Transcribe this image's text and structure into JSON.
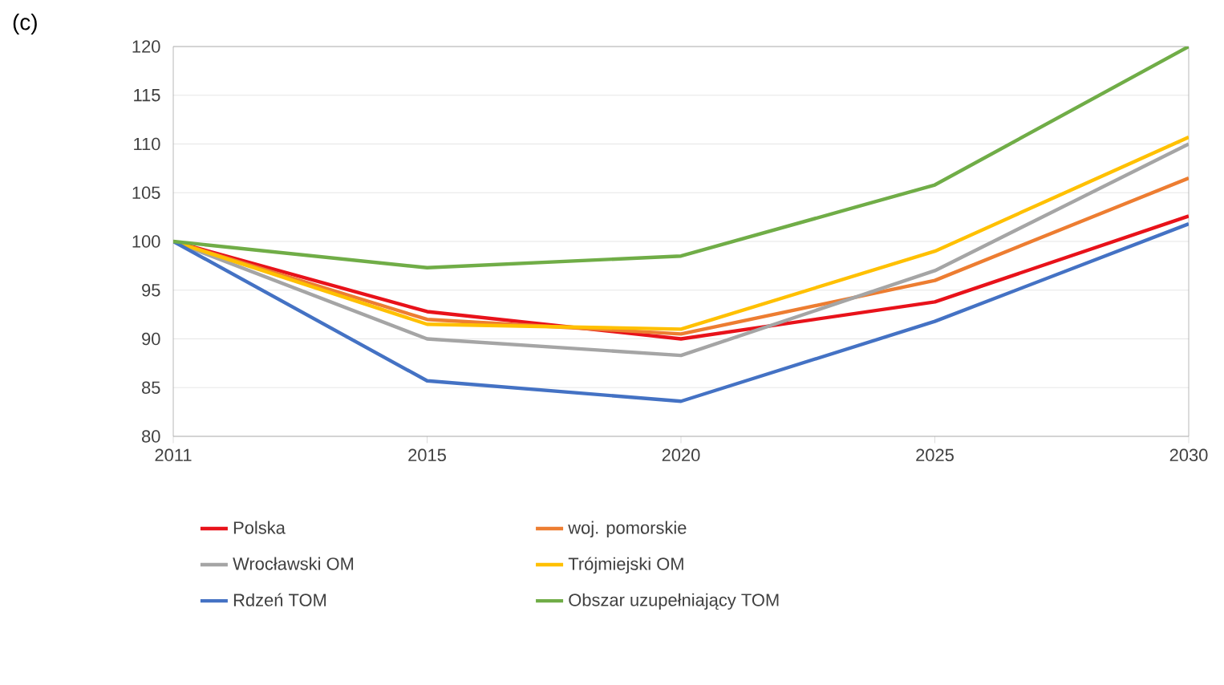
{
  "chart_data": {
    "type": "line",
    "annotations": [
      "(c)"
    ],
    "categories": [
      "2011",
      "2015",
      "2020",
      "2025",
      "2030"
    ],
    "series": [
      {
        "name": "Polska",
        "color": "#e8121a",
        "values": [
          100,
          92.8,
          90.0,
          93.8,
          102.6
        ]
      },
      {
        "name": "woj. pomorskie",
        "color": "#ed7d31",
        "values": [
          100,
          92,
          90.5,
          96,
          106.5
        ]
      },
      {
        "name": "Wrocławski OM",
        "color": "#a5a5a5",
        "values": [
          100,
          90,
          88.3,
          97,
          110
        ]
      },
      {
        "name": "Trójmiejski OM",
        "color": "#ffc000",
        "values": [
          100,
          91.5,
          91,
          99,
          110.7
        ]
      },
      {
        "name": "Rdzeń TOM",
        "color": "#4472c4",
        "values": [
          100,
          85.7,
          83.6,
          91.8,
          101.8
        ]
      },
      {
        "name": "Obszar uzupełniający TOM",
        "color": "#70ad47",
        "values": [
          100,
          97.3,
          98.5,
          105.8,
          120
        ]
      }
    ],
    "ylim": [
      80,
      120
    ],
    "yticks": [
      80,
      85,
      90,
      95,
      100,
      105,
      110,
      115,
      120
    ],
    "grid": "y",
    "legend": "bottom"
  }
}
